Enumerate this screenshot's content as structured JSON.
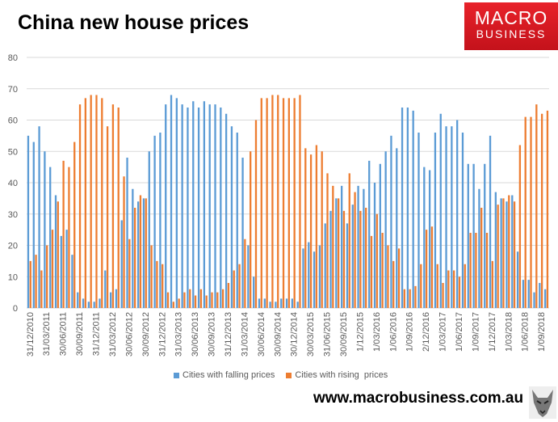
{
  "header": {
    "title": "China new house prices"
  },
  "logo": {
    "line1": "MACRO",
    "line2": "BUSINESS",
    "color": "#d7191f"
  },
  "footer": {
    "url": "www.macrobusiness.com.au"
  },
  "chart_data": {
    "type": "bar",
    "title": "China new house prices",
    "xlabel": "",
    "ylabel": "",
    "ylim": [
      0,
      80
    ],
    "y_ticks": [
      0,
      10,
      20,
      30,
      40,
      50,
      60,
      70,
      80
    ],
    "grid": true,
    "legend_position": "bottom",
    "x_tick_labels": [
      "31/12/2010",
      "31/03/2011",
      "30/06/2011",
      "30/09/2011",
      "31/12/2011",
      "31/03/2012",
      "30/06/2012",
      "30/09/2012",
      "31/12/2012",
      "31/03/2013",
      "30/06/2013",
      "30/09/2013",
      "31/12/2013",
      "31/03/2014",
      "30/06/2014",
      "30/09/2014",
      "30/12/2014",
      "30/03/2015",
      "31/06/2015",
      "30/09/2015",
      "1/12/2015",
      "1/03/2016",
      "1/06/2016",
      "1/09/2016",
      "2/12/2016",
      "1/03/2017",
      "1/06/2017",
      "1/09/2017",
      "1/12/2017",
      "1/03/2018",
      "1/06/2018",
      "1/09/2018"
    ],
    "series": [
      {
        "name": "Cities with falling prices",
        "color": "#5b9bd5",
        "values": [
          55,
          53,
          58,
          50,
          45,
          36,
          23,
          25,
          17,
          5,
          3,
          2,
          2,
          3,
          12,
          5,
          6,
          28,
          48,
          38,
          34,
          35,
          50,
          55,
          56,
          65,
          68,
          67,
          65,
          64,
          66,
          64,
          66,
          65,
          65,
          64,
          62,
          58,
          56,
          48,
          20,
          10,
          3,
          3,
          2,
          2,
          3,
          3,
          3,
          2,
          19,
          21,
          18,
          20,
          27,
          31,
          35,
          39,
          27,
          33,
          39,
          38,
          47,
          40,
          46,
          50,
          55,
          51,
          64,
          64,
          63,
          56,
          45,
          44,
          56,
          62,
          58,
          58,
          60,
          56,
          46,
          46,
          38,
          46,
          55,
          37,
          35,
          34,
          36,
          18,
          9,
          9,
          5,
          8,
          6
        ]
      },
      {
        "name": "Cities with rising  prices",
        "color": "#ed7d31",
        "values": [
          15,
          17,
          12,
          20,
          25,
          34,
          47,
          45,
          53,
          65,
          67,
          68,
          68,
          67,
          58,
          65,
          64,
          42,
          22,
          32,
          36,
          35,
          20,
          15,
          14,
          5,
          2,
          3,
          5,
          6,
          4,
          6,
          4,
          5,
          5,
          6,
          8,
          12,
          14,
          22,
          50,
          60,
          67,
          67,
          68,
          68,
          67,
          67,
          67,
          68,
          51,
          49,
          52,
          50,
          43,
          39,
          35,
          31,
          43,
          37,
          31,
          32,
          23,
          30,
          24,
          20,
          15,
          19,
          6,
          6,
          7,
          14,
          25,
          26,
          14,
          8,
          12,
          12,
          10,
          14,
          24,
          24,
          32,
          24,
          15,
          33,
          35,
          36,
          34,
          52,
          61,
          61,
          65,
          62,
          63
        ]
      }
    ]
  }
}
